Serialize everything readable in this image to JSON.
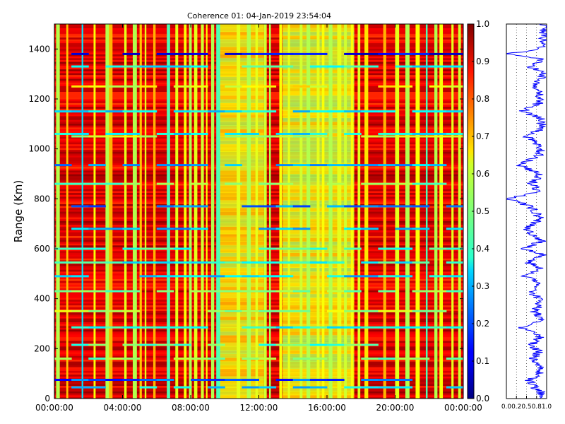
{
  "title": "Coherence 01: 04-Jan-2019 23:54:04",
  "chart_data": [
    {
      "type": "heatmap",
      "title": "Coherence 01: 04-Jan-2019 23:54:04",
      "ylabel": "Range (Km)",
      "xlabel": "",
      "x_tick_labels": [
        "00:00:00",
        "04:00:00",
        "08:00:00",
        "12:00:00",
        "16:00:00",
        "20:00:00",
        "00:00:00"
      ],
      "x_range_hours": [
        0,
        24
      ],
      "y_tick_labels": [
        "0",
        "200",
        "400",
        "600",
        "800",
        "1000",
        "1200",
        "1400"
      ],
      "y_ticks": [
        0,
        200,
        400,
        600,
        800,
        1000,
        1200,
        1400
      ],
      "ylim": [
        0,
        1500
      ],
      "colormap": "jet",
      "colorbar": {
        "ticks": [
          0.0,
          0.1,
          0.2,
          0.3,
          0.4,
          0.5,
          0.6,
          0.7,
          0.8,
          0.9,
          1.0
        ],
        "tick_labels": [
          "0.0",
          "0.1",
          "0.2",
          "0.3",
          "0.4",
          "0.5",
          "0.6",
          "0.7",
          "0.8",
          "0.9",
          "1.0"
        ],
        "range": [
          0,
          1
        ]
      },
      "time_vertical_bands_hours": [
        {
          "t": 0.1,
          "v": 0.55
        },
        {
          "t": 0.7,
          "v": 0.68
        },
        {
          "t": 1.6,
          "v": 0.35
        },
        {
          "t": 2.3,
          "v": 0.62
        },
        {
          "t": 3.0,
          "v": 0.55
        },
        {
          "t": 3.2,
          "v": 0.7
        },
        {
          "t": 4.1,
          "v": 0.6
        },
        {
          "t": 4.6,
          "v": 0.55
        },
        {
          "t": 5.0,
          "v": 0.68
        },
        {
          "t": 5.3,
          "v": 0.6
        },
        {
          "t": 5.8,
          "v": 0.7
        },
        {
          "t": 6.6,
          "v": 0.45
        },
        {
          "t": 7.1,
          "v": 0.6
        },
        {
          "t": 7.6,
          "v": 0.62
        },
        {
          "t": 7.9,
          "v": 0.55
        },
        {
          "t": 8.2,
          "v": 0.6
        },
        {
          "t": 8.6,
          "v": 0.58
        },
        {
          "t": 8.9,
          "v": 0.62
        },
        {
          "t": 9.2,
          "v": 0.55
        },
        {
          "t": 9.5,
          "v": 0.45
        },
        {
          "t": 10.7,
          "v": 0.6
        },
        {
          "t": 11.3,
          "v": 0.55
        },
        {
          "t": 11.8,
          "v": 0.6
        },
        {
          "t": 12.3,
          "v": 0.58
        },
        {
          "t": 12.6,
          "v": 0.55
        },
        {
          "t": 13.2,
          "v": 0.62
        },
        {
          "t": 13.7,
          "v": 0.6
        },
        {
          "t": 14.4,
          "v": 0.58
        },
        {
          "t": 14.8,
          "v": 0.55
        },
        {
          "t": 15.4,
          "v": 0.6
        },
        {
          "t": 15.7,
          "v": 0.62
        },
        {
          "t": 16.1,
          "v": 0.55
        },
        {
          "t": 16.6,
          "v": 0.6
        },
        {
          "t": 17.0,
          "v": 0.58
        },
        {
          "t": 17.4,
          "v": 0.62
        },
        {
          "t": 17.8,
          "v": 0.6
        },
        {
          "t": 18.2,
          "v": 0.65
        },
        {
          "t": 19.3,
          "v": 0.7
        },
        {
          "t": 20.0,
          "v": 0.6
        },
        {
          "t": 20.6,
          "v": 0.55
        },
        {
          "t": 21.2,
          "v": 0.62
        },
        {
          "t": 21.8,
          "v": 0.45
        },
        {
          "t": 22.3,
          "v": 0.55
        },
        {
          "t": 22.6,
          "v": 0.62
        },
        {
          "t": 23.3,
          "v": 0.6
        },
        {
          "t": 23.7,
          "v": 0.58
        }
      ],
      "low_coherence_ranges_km": [
        {
          "km": 1380,
          "v": 0.12
        },
        {
          "km": 1330,
          "v": 0.4
        },
        {
          "km": 1250,
          "v": 0.6
        },
        {
          "km": 1150,
          "v": 0.35
        },
        {
          "km": 1060,
          "v": 0.35
        },
        {
          "km": 1050,
          "v": 0.55
        },
        {
          "km": 935,
          "v": 0.3
        },
        {
          "km": 860,
          "v": 0.5
        },
        {
          "km": 770,
          "v": 0.25
        },
        {
          "km": 680,
          "v": 0.3
        },
        {
          "km": 600,
          "v": 0.45
        },
        {
          "km": 545,
          "v": 0.4
        },
        {
          "km": 490,
          "v": 0.35
        },
        {
          "km": 430,
          "v": 0.5
        },
        {
          "km": 350,
          "v": 0.55
        },
        {
          "km": 285,
          "v": 0.4
        },
        {
          "km": 215,
          "v": 0.45
        },
        {
          "km": 160,
          "v": 0.5
        },
        {
          "km": 75,
          "v": 0.2
        },
        {
          "km": 45,
          "v": 0.35
        }
      ]
    },
    {
      "type": "line",
      "orientation": "vertical-profile",
      "x_tick_labels": [
        "0.0",
        "0.2",
        "0.5",
        "0.8",
        "1.0"
      ],
      "x_ticks": [
        0.0,
        0.25,
        0.5,
        0.75,
        1.0
      ],
      "xlim": [
        0,
        1
      ],
      "ylim": [
        0,
        1500
      ],
      "profile": [
        {
          "km": 0,
          "v": 0.92
        },
        {
          "km": 25,
          "v": 0.85
        },
        {
          "km": 45,
          "v": 0.7
        },
        {
          "km": 75,
          "v": 0.55
        },
        {
          "km": 100,
          "v": 0.8
        },
        {
          "km": 125,
          "v": 0.88
        },
        {
          "km": 160,
          "v": 0.65
        },
        {
          "km": 190,
          "v": 0.82
        },
        {
          "km": 215,
          "v": 0.6
        },
        {
          "km": 245,
          "v": 0.86
        },
        {
          "km": 285,
          "v": 0.4
        },
        {
          "km": 315,
          "v": 0.85
        },
        {
          "km": 350,
          "v": 0.7
        },
        {
          "km": 390,
          "v": 0.88
        },
        {
          "km": 430,
          "v": 0.58
        },
        {
          "km": 460,
          "v": 0.82
        },
        {
          "km": 490,
          "v": 0.5
        },
        {
          "km": 520,
          "v": 0.84
        },
        {
          "km": 545,
          "v": 0.55
        },
        {
          "km": 575,
          "v": 0.9
        },
        {
          "km": 600,
          "v": 0.45
        },
        {
          "km": 630,
          "v": 0.86
        },
        {
          "km": 680,
          "v": 0.5
        },
        {
          "km": 720,
          "v": 0.85
        },
        {
          "km": 770,
          "v": 0.6
        },
        {
          "km": 800,
          "v": 0.02
        },
        {
          "km": 830,
          "v": 0.8
        },
        {
          "km": 860,
          "v": 0.62
        },
        {
          "km": 900,
          "v": 0.85
        },
        {
          "km": 935,
          "v": 0.3
        },
        {
          "km": 970,
          "v": 0.8
        },
        {
          "km": 1000,
          "v": 0.88
        },
        {
          "km": 1050,
          "v": 0.5
        },
        {
          "km": 1080,
          "v": 0.85
        },
        {
          "km": 1120,
          "v": 0.9
        },
        {
          "km": 1150,
          "v": 0.4
        },
        {
          "km": 1190,
          "v": 0.88
        },
        {
          "km": 1250,
          "v": 0.75
        },
        {
          "km": 1300,
          "v": 0.9
        },
        {
          "km": 1330,
          "v": 0.6
        },
        {
          "km": 1360,
          "v": 0.88
        },
        {
          "km": 1380,
          "v": 0.02
        },
        {
          "km": 1400,
          "v": 0.86
        },
        {
          "km": 1450,
          "v": 0.92
        },
        {
          "km": 1500,
          "v": 0.95
        }
      ]
    }
  ]
}
